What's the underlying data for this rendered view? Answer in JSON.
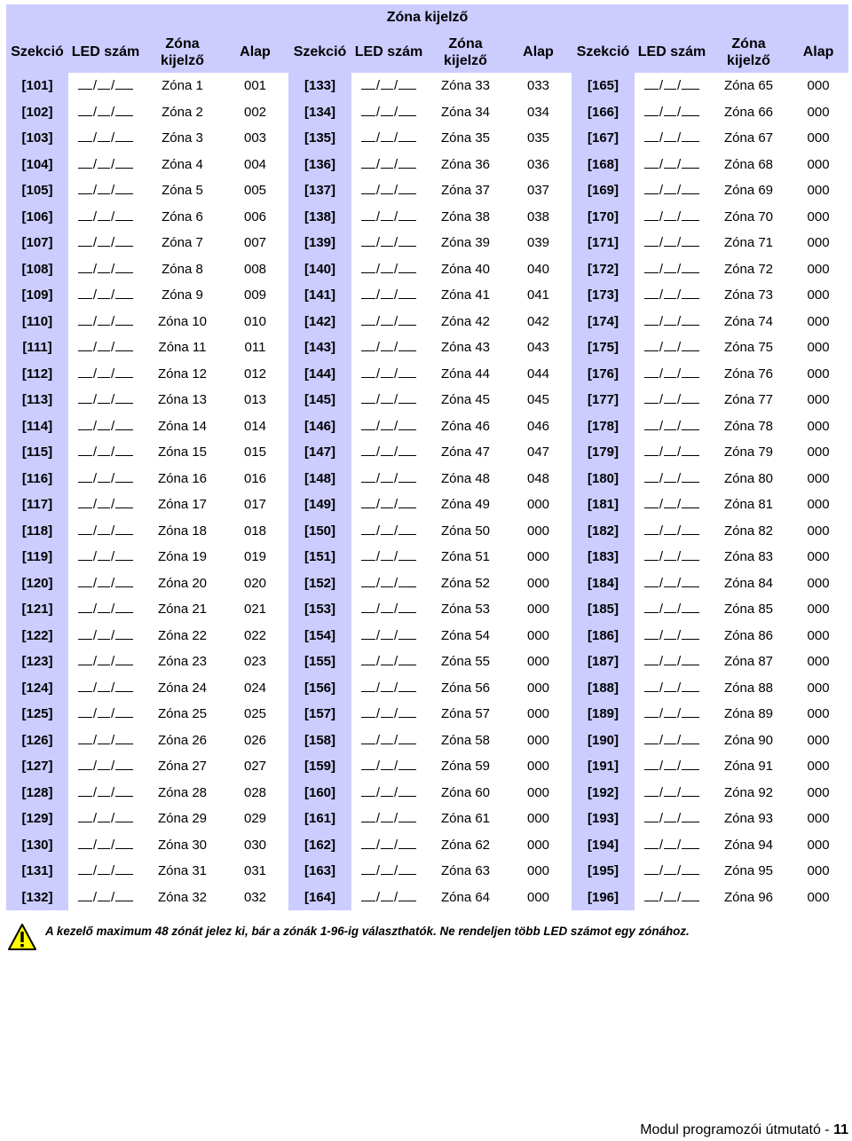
{
  "title": "Zóna kijelző",
  "headers": {
    "section": "Szekció",
    "led": "LED szám",
    "zone_line1": "Zóna",
    "zone_line2": "kijelző",
    "default": "Alap"
  },
  "led_blank": "__/__/__",
  "colors": {
    "header_bg": "#ccccff",
    "warning_yellow": "#ffff00"
  },
  "groups": [
    {
      "rows": [
        {
          "section": "[101]",
          "zone": "Zóna 1",
          "default": "001"
        },
        {
          "section": "[102]",
          "zone": "Zóna 2",
          "default": "002"
        },
        {
          "section": "[103]",
          "zone": "Zóna 3",
          "default": "003"
        },
        {
          "section": "[104]",
          "zone": "Zóna 4",
          "default": "004"
        },
        {
          "section": "[105]",
          "zone": "Zóna 5",
          "default": "005"
        },
        {
          "section": "[106]",
          "zone": "Zóna 6",
          "default": "006"
        },
        {
          "section": "[107]",
          "zone": "Zóna 7",
          "default": "007"
        },
        {
          "section": "[108]",
          "zone": "Zóna 8",
          "default": "008"
        },
        {
          "section": "[109]",
          "zone": "Zóna 9",
          "default": "009"
        },
        {
          "section": "[110]",
          "zone": "Zóna 10",
          "default": "010"
        },
        {
          "section": "[111]",
          "zone": "Zóna 11",
          "default": "011"
        },
        {
          "section": "[112]",
          "zone": "Zóna 12",
          "default": "012"
        },
        {
          "section": "[113]",
          "zone": "Zóna 13",
          "default": "013"
        },
        {
          "section": "[114]",
          "zone": "Zóna 14",
          "default": "014"
        },
        {
          "section": "[115]",
          "zone": "Zóna 15",
          "default": "015"
        },
        {
          "section": "[116]",
          "zone": "Zóna 16",
          "default": "016"
        },
        {
          "section": "[117]",
          "zone": "Zóna 17",
          "default": "017"
        },
        {
          "section": "[118]",
          "zone": "Zóna 18",
          "default": "018"
        },
        {
          "section": "[119]",
          "zone": "Zóna 19",
          "default": "019"
        },
        {
          "section": "[120]",
          "zone": "Zóna 20",
          "default": "020"
        },
        {
          "section": "[121]",
          "zone": "Zóna 21",
          "default": "021"
        },
        {
          "section": "[122]",
          "zone": "Zóna 22",
          "default": "022"
        },
        {
          "section": "[123]",
          "zone": "Zóna 23",
          "default": "023"
        },
        {
          "section": "[124]",
          "zone": "Zóna 24",
          "default": "024"
        },
        {
          "section": "[125]",
          "zone": "Zóna 25",
          "default": "025"
        },
        {
          "section": "[126]",
          "zone": "Zóna 26",
          "default": "026"
        },
        {
          "section": "[127]",
          "zone": "Zóna 27",
          "default": "027"
        },
        {
          "section": "[128]",
          "zone": "Zóna 28",
          "default": "028"
        },
        {
          "section": "[129]",
          "zone": "Zóna 29",
          "default": "029"
        },
        {
          "section": "[130]",
          "zone": "Zóna 30",
          "default": "030"
        },
        {
          "section": "[131]",
          "zone": "Zóna 31",
          "default": "031"
        },
        {
          "section": "[132]",
          "zone": "Zóna 32",
          "default": "032"
        }
      ]
    },
    {
      "rows": [
        {
          "section": "[133]",
          "zone": "Zóna 33",
          "default": "033"
        },
        {
          "section": "[134]",
          "zone": "Zóna 34",
          "default": "034"
        },
        {
          "section": "[135]",
          "zone": "Zóna 35",
          "default": "035"
        },
        {
          "section": "[136]",
          "zone": "Zóna 36",
          "default": "036"
        },
        {
          "section": "[137]",
          "zone": "Zóna 37",
          "default": "037"
        },
        {
          "section": "[138]",
          "zone": "Zóna 38",
          "default": "038"
        },
        {
          "section": "[139]",
          "zone": "Zóna 39",
          "default": "039"
        },
        {
          "section": "[140]",
          "zone": "Zóna 40",
          "default": "040"
        },
        {
          "section": "[141]",
          "zone": "Zóna 41",
          "default": "041"
        },
        {
          "section": "[142]",
          "zone": "Zóna 42",
          "default": "042"
        },
        {
          "section": "[143]",
          "zone": "Zóna 43",
          "default": "043"
        },
        {
          "section": "[144]",
          "zone": "Zóna 44",
          "default": "044"
        },
        {
          "section": "[145]",
          "zone": "Zóna 45",
          "default": "045"
        },
        {
          "section": "[146]",
          "zone": "Zóna 46",
          "default": "046"
        },
        {
          "section": "[147]",
          "zone": "Zóna 47",
          "default": "047"
        },
        {
          "section": "[148]",
          "zone": "Zóna 48",
          "default": "048"
        },
        {
          "section": "[149]",
          "zone": "Zóna 49",
          "default": "000"
        },
        {
          "section": "[150]",
          "zone": "Zóna 50",
          "default": "000"
        },
        {
          "section": "[151]",
          "zone": "Zóna 51",
          "default": "000"
        },
        {
          "section": "[152]",
          "zone": "Zóna 52",
          "default": "000"
        },
        {
          "section": "[153]",
          "zone": "Zóna 53",
          "default": "000"
        },
        {
          "section": "[154]",
          "zone": "Zóna 54",
          "default": "000"
        },
        {
          "section": "[155]",
          "zone": "Zóna 55",
          "default": "000"
        },
        {
          "section": "[156]",
          "zone": "Zóna 56",
          "default": "000"
        },
        {
          "section": "[157]",
          "zone": "Zóna 57",
          "default": "000"
        },
        {
          "section": "[158]",
          "zone": "Zóna 58",
          "default": "000"
        },
        {
          "section": "[159]",
          "zone": "Zóna 59",
          "default": "000"
        },
        {
          "section": "[160]",
          "zone": "Zóna 60",
          "default": "000"
        },
        {
          "section": "[161]",
          "zone": "Zóna 61",
          "default": "000"
        },
        {
          "section": "[162]",
          "zone": "Zóna 62",
          "default": "000"
        },
        {
          "section": "[163]",
          "zone": "Zóna 63",
          "default": "000"
        },
        {
          "section": "[164]",
          "zone": "Zóna 64",
          "default": "000"
        }
      ]
    },
    {
      "rows": [
        {
          "section": "[165]",
          "zone": "Zóna 65",
          "default": "000"
        },
        {
          "section": "[166]",
          "zone": "Zóna 66",
          "default": "000"
        },
        {
          "section": "[167]",
          "zone": "Zóna 67",
          "default": "000"
        },
        {
          "section": "[168]",
          "zone": "Zóna 68",
          "default": "000"
        },
        {
          "section": "[169]",
          "zone": "Zóna 69",
          "default": "000"
        },
        {
          "section": "[170]",
          "zone": "Zóna 70",
          "default": "000"
        },
        {
          "section": "[171]",
          "zone": "Zóna 71",
          "default": "000"
        },
        {
          "section": "[172]",
          "zone": "Zóna 72",
          "default": "000"
        },
        {
          "section": "[173]",
          "zone": "Zóna 73",
          "default": "000"
        },
        {
          "section": "[174]",
          "zone": "Zóna 74",
          "default": "000"
        },
        {
          "section": "[175]",
          "zone": "Zóna 75",
          "default": "000"
        },
        {
          "section": "[176]",
          "zone": "Zóna 76",
          "default": "000"
        },
        {
          "section": "[177]",
          "zone": "Zóna 77",
          "default": "000"
        },
        {
          "section": "[178]",
          "zone": "Zóna 78",
          "default": "000"
        },
        {
          "section": "[179]",
          "zone": "Zóna 79",
          "default": "000"
        },
        {
          "section": "[180]",
          "zone": "Zóna 80",
          "default": "000"
        },
        {
          "section": "[181]",
          "zone": "Zóna 81",
          "default": "000"
        },
        {
          "section": "[182]",
          "zone": "Zóna 82",
          "default": "000"
        },
        {
          "section": "[183]",
          "zone": "Zóna 83",
          "default": "000"
        },
        {
          "section": "[184]",
          "zone": "Zóna 84",
          "default": "000"
        },
        {
          "section": "[185]",
          "zone": "Zóna 85",
          "default": "000"
        },
        {
          "section": "[186]",
          "zone": "Zóna 86",
          "default": "000"
        },
        {
          "section": "[187]",
          "zone": "Zóna 87",
          "default": "000"
        },
        {
          "section": "[188]",
          "zone": "Zóna 88",
          "default": "000"
        },
        {
          "section": "[189]",
          "zone": "Zóna 89",
          "default": "000"
        },
        {
          "section": "[190]",
          "zone": "Zóna 90",
          "default": "000"
        },
        {
          "section": "[191]",
          "zone": "Zóna 91",
          "default": "000"
        },
        {
          "section": "[192]",
          "zone": "Zóna 92",
          "default": "000"
        },
        {
          "section": "[193]",
          "zone": "Zóna 93",
          "default": "000"
        },
        {
          "section": "[194]",
          "zone": "Zóna 94",
          "default": "000"
        },
        {
          "section": "[195]",
          "zone": "Zóna 95",
          "default": "000"
        },
        {
          "section": "[196]",
          "zone": "Zóna 96",
          "default": "000"
        }
      ]
    }
  ],
  "warning": {
    "icon": "warning-triangle-icon",
    "text": "A kezelő maximum 48 zónát jelez ki, bár a zónák 1-96-ig választhatók. Ne rendeljen több LED számot egy zónához."
  },
  "footer": {
    "text": "Modul programozói útmutató - ",
    "page": "11"
  }
}
